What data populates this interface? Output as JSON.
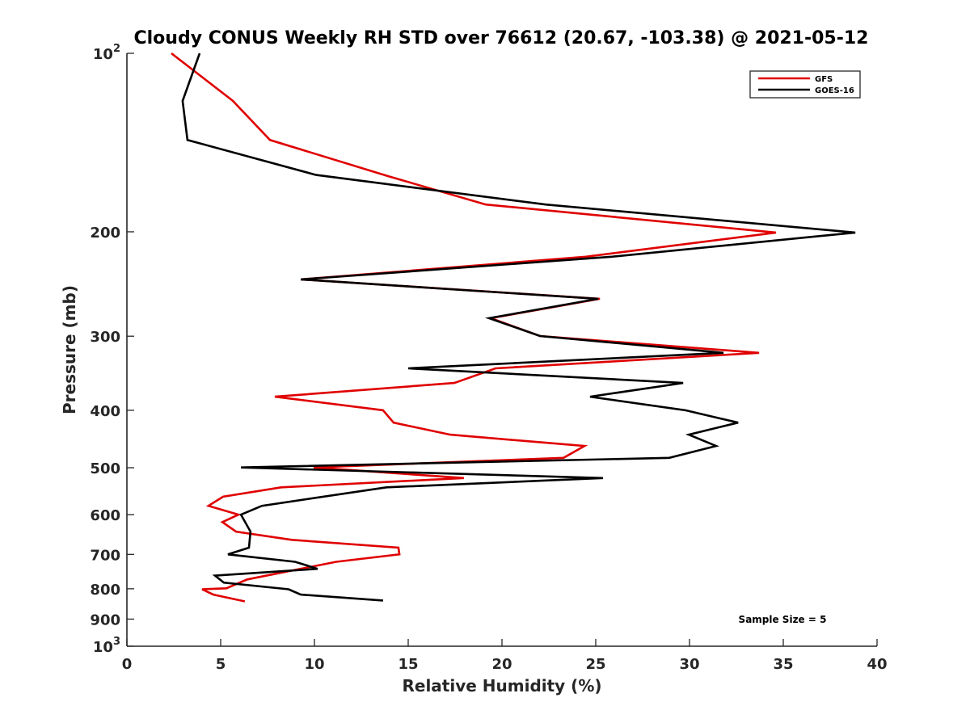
{
  "chart_data": {
    "type": "line",
    "title": "Cloudy CONUS Weekly RH STD over 76612 (20.67, -103.38) @ 2021-05-12",
    "xlabel": "Relative Humidity (%)",
    "ylabel": "Pressure (mb)",
    "xlim": [
      0,
      40
    ],
    "ylim": [
      100,
      1000
    ],
    "yscale": "log",
    "yaxis_reversed": true,
    "grid": false,
    "x_ticks": [
      0,
      5,
      10,
      15,
      20,
      25,
      30,
      35,
      40
    ],
    "x_tick_labels": [
      "0",
      "5",
      "10",
      "15",
      "20",
      "25",
      "30",
      "35",
      "40"
    ],
    "y_ticks": [
      100,
      200,
      300,
      400,
      500,
      600,
      700,
      800,
      900,
      1000
    ],
    "y_tick_labels": [
      {
        "base": "10",
        "exp": "2"
      },
      {
        "text": "200"
      },
      {
        "text": "300"
      },
      {
        "text": "400"
      },
      {
        "text": "500"
      },
      {
        "text": "600"
      },
      {
        "text": "700"
      },
      {
        "text": "800"
      },
      {
        "text": "900"
      },
      {
        "base": "10",
        "exp": "3"
      }
    ],
    "legend_position": "top-right",
    "annotation": "Sample Size = 5",
    "series": [
      {
        "name": "GFS",
        "color": "#e00000",
        "rh": [
          2.37,
          5.65,
          7.63,
          13.92,
          19.14,
          34.61,
          24.48,
          9.27,
          25.22,
          19.4,
          22.03,
          33.71,
          19.66,
          17.46,
          7.89,
          13.66,
          14.22,
          17.24,
          24.4,
          23.28,
          9.96,
          17.97,
          8.23,
          5.13,
          4.35,
          5.95,
          5.09,
          5.82,
          8.79,
          14.48,
          14.53,
          11.16,
          6.42,
          5.3,
          4.01,
          4.61,
          6.29
        ],
        "pressure": [
          100,
          120.3,
          140.0,
          161.1,
          179.9,
          200.6,
          220.3,
          240.6,
          259.4,
          279.7,
          299.8,
          320.0,
          339.9,
          359.7,
          379.4,
          400.0,
          419.7,
          439.8,
          459.5,
          481.1,
          499.5,
          520.4,
          539.6,
          559.6,
          579.7,
          599.8,
          617.4,
          640.7,
          661.5,
          682.1,
          700.1,
          720.6,
          771.5,
          798.6,
          801.5,
          818.3,
          840.2
        ]
      },
      {
        "name": "GOES-16",
        "color": "#000000",
        "rh": [
          3.88,
          2.97,
          3.23,
          10.09,
          22.33,
          38.84,
          25.86,
          9.27,
          25.13,
          19.31,
          22.03,
          31.81,
          15.0,
          29.66,
          24.7,
          29.78,
          32.59,
          29.96,
          31.42,
          28.92,
          6.08,
          25.39,
          13.84,
          7.2,
          6.08,
          6.59,
          6.51,
          5.39,
          8.97,
          10.17,
          4.7,
          5.17,
          8.62,
          9.27,
          13.66
        ],
        "pressure": [
          100,
          120.3,
          140.0,
          160.4,
          179.9,
          200.6,
          220.3,
          240.6,
          259.4,
          279.7,
          299.8,
          320.0,
          339.9,
          359.7,
          379.4,
          400.0,
          419.7,
          439.8,
          459.5,
          481.1,
          499.5,
          520.4,
          539.6,
          579.7,
          599.8,
          640.7,
          682.1,
          700.1,
          720.6,
          740.5,
          760.2,
          781.3,
          801.5,
          818.3,
          837.4
        ]
      }
    ]
  }
}
